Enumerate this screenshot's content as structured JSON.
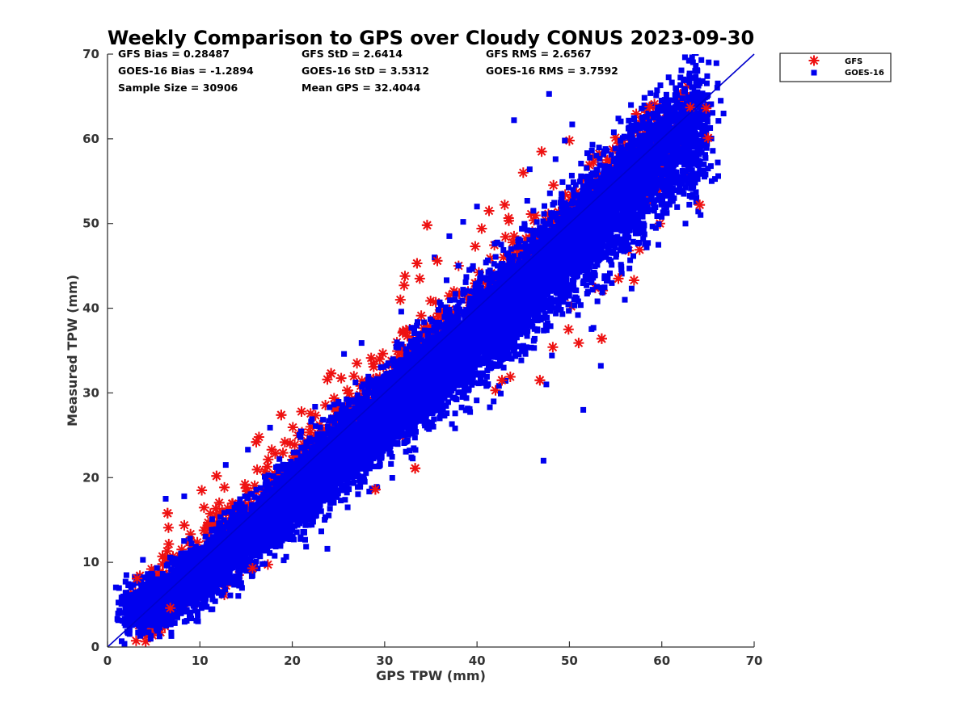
{
  "chart_data": {
    "type": "scatter",
    "title": "Weekly Comparison to GPS over Cloudy CONUS 2023-09-30",
    "xlabel": "GPS TPW (mm)",
    "ylabel": "Measured TPW (mm)",
    "xlim": [
      0,
      70
    ],
    "ylim": [
      0,
      70
    ],
    "xticks": [
      "0",
      "10",
      "20",
      "30",
      "40",
      "50",
      "60",
      "70"
    ],
    "yticks": [
      "0",
      "10",
      "20",
      "30",
      "40",
      "50",
      "60",
      "70"
    ],
    "grid": false,
    "legend_position": "outside top-right",
    "reference_line": {
      "name": "1:1 line",
      "x": [
        0,
        70
      ],
      "y": [
        0,
        70
      ],
      "color": "#0000cc"
    },
    "stats": [
      [
        "GFS Bias = 0.28487",
        "GFS StD = 2.6414",
        "GFS RMS = 2.6567"
      ],
      [
        "GOES-16 Bias = -1.2894",
        "GOES-16 StD = 3.5312",
        "GOES-16 RMS = 3.7592"
      ],
      [
        "Sample Size = 30906",
        "Mean GPS = 32.4044",
        ""
      ]
    ],
    "series": [
      {
        "name": "GFS",
        "marker": "asterisk",
        "color": "#ee1111",
        "points": [
          [
            2.5,
            6.3
          ],
          [
            3.2,
            8.1
          ],
          [
            3.6,
            6.2
          ],
          [
            5.0,
            7.9
          ],
          [
            6.5,
            15.8
          ],
          [
            6.6,
            14.1
          ],
          [
            6.8,
            4.6
          ],
          [
            7.0,
            9.0
          ],
          [
            8.5,
            6.4
          ],
          [
            9.2,
            6.2
          ],
          [
            10.2,
            18.5
          ],
          [
            11.8,
            20.2
          ],
          [
            14.2,
            8.5
          ],
          [
            15.7,
            9.3
          ],
          [
            16.1,
            24.2
          ],
          [
            16.4,
            24.8
          ],
          [
            18.8,
            27.4
          ],
          [
            21.0,
            27.8
          ],
          [
            23.8,
            31.6
          ],
          [
            24.2,
            32.3
          ],
          [
            29.0,
            18.6
          ],
          [
            33.3,
            21.1
          ],
          [
            31.7,
            41.0
          ],
          [
            32.1,
            42.7
          ],
          [
            32.2,
            43.8
          ],
          [
            33.5,
            45.3
          ],
          [
            33.8,
            43.5
          ],
          [
            34.6,
            49.8
          ],
          [
            35.7,
            45.6
          ],
          [
            38.0,
            45.0
          ],
          [
            39.8,
            47.3
          ],
          [
            40.5,
            49.4
          ],
          [
            41.3,
            51.5
          ],
          [
            42.0,
            30.3
          ],
          [
            42.7,
            31.5
          ],
          [
            43.0,
            52.2
          ],
          [
            43.6,
            31.9
          ],
          [
            46.8,
            31.5
          ],
          [
            48.2,
            35.4
          ],
          [
            49.5,
            41.3
          ],
          [
            49.9,
            37.5
          ],
          [
            50.2,
            40.2
          ],
          [
            51.0,
            35.9
          ],
          [
            52.8,
            42.4
          ],
          [
            53.6,
            42.1
          ],
          [
            53.5,
            36.4
          ],
          [
            55.3,
            43.5
          ],
          [
            56.4,
            46.8
          ],
          [
            57.0,
            43.3
          ],
          [
            57.6,
            46.9
          ],
          [
            58.2,
            60.6
          ],
          [
            58.7,
            63.8
          ],
          [
            59.2,
            64.1
          ],
          [
            59.8,
            50.0
          ],
          [
            60.5,
            58.4
          ],
          [
            61.2,
            59.7
          ],
          [
            62.0,
            60.4
          ],
          [
            62.5,
            61.2
          ],
          [
            63.1,
            63.7
          ],
          [
            63.4,
            60.2
          ],
          [
            64.1,
            52.2
          ],
          [
            64.8,
            63.6
          ],
          [
            65.0,
            60.1
          ],
          [
            37.5,
            42.0
          ],
          [
            40.0,
            37.0
          ],
          [
            45.0,
            56.0
          ],
          [
            47.0,
            58.5
          ],
          [
            50.0,
            59.8
          ],
          [
            55.0,
            56.5
          ],
          [
            27.0,
            33.5
          ],
          [
            22.0,
            26.0
          ],
          [
            19.0,
            16.0
          ],
          [
            12.5,
            10.5
          ],
          [
            9.0,
            12.0
          ],
          [
            44.0,
            48.5
          ],
          [
            36.0,
            30.0
          ],
          [
            30.0,
            26.5
          ],
          [
            25.0,
            22.0
          ]
        ]
      },
      {
        "name": "GOES-16",
        "marker": "square",
        "color": "#0000ee",
        "core": [
          [
            2.5,
            4.3,
            3.5
          ],
          [
            6.5,
            6.0,
            9.0
          ],
          [
            12.0,
            10.0,
            12.0
          ],
          [
            20.0,
            17.5,
            16.0
          ],
          [
            28.0,
            25.5,
            18.0
          ],
          [
            36.0,
            33.0,
            17.0
          ],
          [
            44.0,
            41.0,
            15.0
          ],
          [
            52.0,
            49.0,
            12.0
          ],
          [
            58.0,
            56.0,
            10.0
          ],
          [
            64.5,
            62.5,
            8.0
          ]
        ],
        "outliers": [
          [
            2.3,
            4.6
          ],
          [
            3.7,
            5.6
          ],
          [
            4.2,
            7.2
          ],
          [
            5.4,
            5.4
          ],
          [
            6.3,
            17.5
          ],
          [
            6.6,
            4.3
          ],
          [
            8.3,
            17.8
          ],
          [
            9.8,
            6.7
          ],
          [
            12.8,
            21.5
          ],
          [
            15.2,
            23.3
          ],
          [
            16.4,
            11.3
          ],
          [
            17.6,
            25.9
          ],
          [
            23.8,
            11.6
          ],
          [
            25.6,
            34.6
          ],
          [
            27.5,
            35.9
          ],
          [
            29.2,
            18.8
          ],
          [
            31.8,
            39.6
          ],
          [
            32.9,
            22.4
          ],
          [
            35.4,
            46.0
          ],
          [
            37.0,
            48.5
          ],
          [
            38.5,
            50.2
          ],
          [
            40.0,
            52.0
          ],
          [
            39.2,
            28.1
          ],
          [
            44.0,
            62.2
          ],
          [
            45.7,
            56.4
          ],
          [
            47.8,
            65.3
          ],
          [
            48.5,
            57.6
          ],
          [
            47.2,
            22.0
          ],
          [
            49.5,
            59.8
          ],
          [
            50.3,
            61.7
          ],
          [
            51.5,
            28.0
          ],
          [
            52.5,
            59.3
          ],
          [
            53.4,
            33.2
          ],
          [
            55.3,
            62.4
          ],
          [
            56.0,
            41.0
          ],
          [
            57.2,
            61.0
          ],
          [
            58.5,
            47.7
          ],
          [
            60.5,
            65.2
          ],
          [
            61.5,
            62.3
          ],
          [
            62.8,
            57.5
          ],
          [
            63.7,
            53.7
          ],
          [
            64.2,
            51.0
          ],
          [
            65.0,
            56.5
          ],
          [
            47.5,
            31.0
          ],
          [
            44.5,
            35.5
          ],
          [
            36.5,
            28.5
          ],
          [
            41.8,
            29.0
          ],
          [
            26.0,
            16.5
          ],
          [
            21.3,
            13.5
          ]
        ]
      }
    ]
  }
}
